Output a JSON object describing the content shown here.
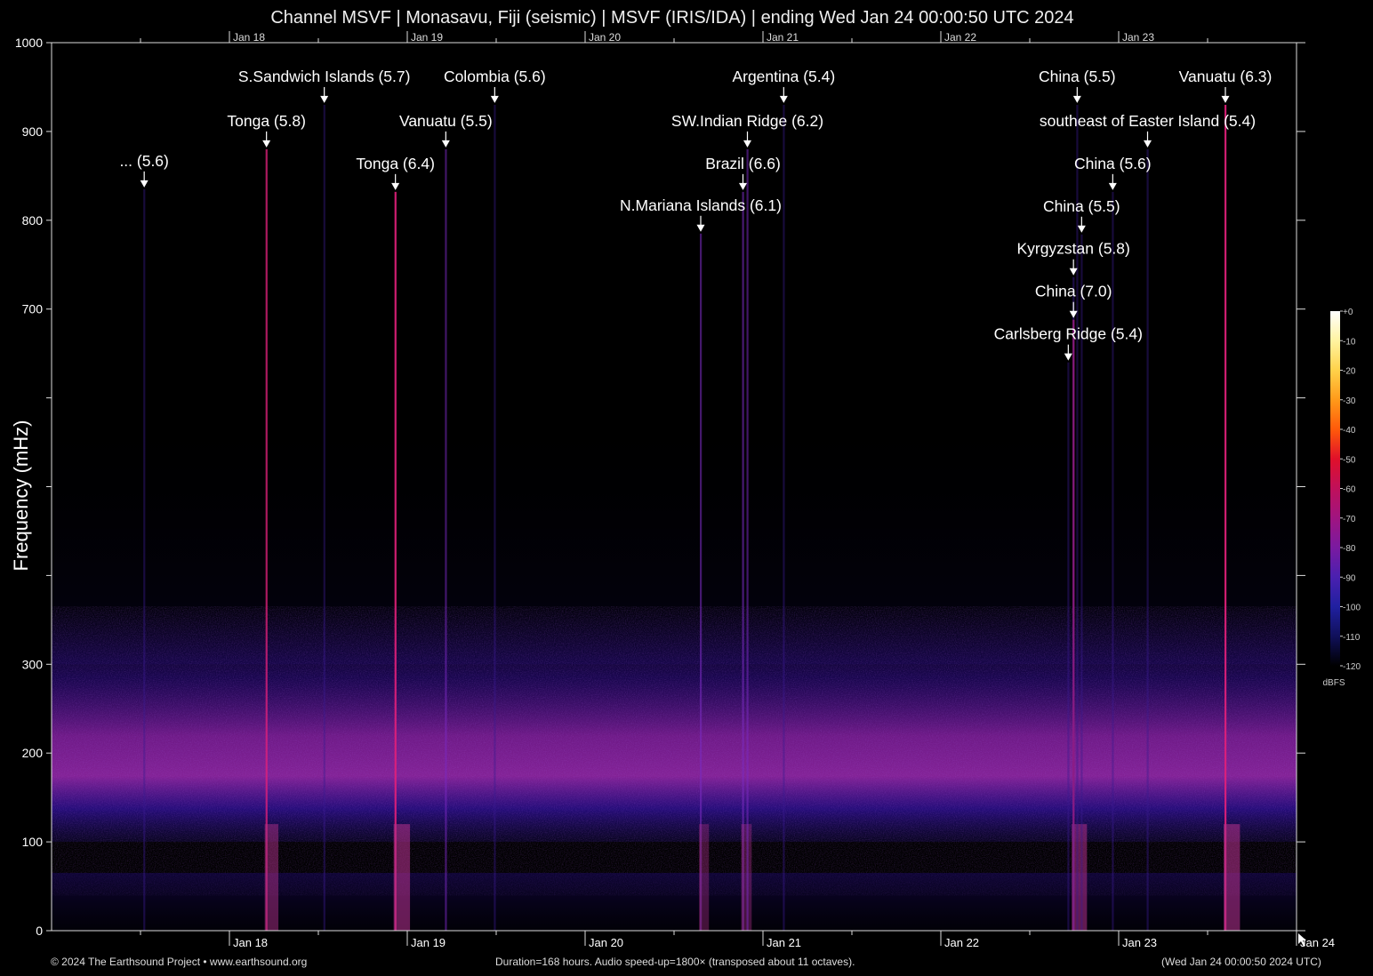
{
  "title": "Channel MSVF | Monasavu, Fiji (seismic) | MSVF (IRIS/IDA) | ending Wed Jan 24 00:00:50 UTC 2024",
  "footer": {
    "left": "© 2024 The Earthsound Project • www.earthsound.org",
    "middle": "Duration=168 hours. Audio speed-up=1800× (transposed about 11 octaves).",
    "right": "(Wed Jan 24 00:00:50 2024 UTC)"
  },
  "chart_data": {
    "type": "heatmap",
    "title": "Channel MSVF | Monasavu, Fiji (seismic) | MSVF (IRIS/IDA) | ending Wed Jan 24 00:00:50 UTC 2024",
    "ylabel": "Frequency (mHz)",
    "xlabel": "",
    "xlim_hours": [
      0,
      168
    ],
    "ylim": [
      0,
      1000
    ],
    "x_tick_labels": [
      {
        "label": "Jan 18",
        "hour": 24
      },
      {
        "label": "Jan 19",
        "hour": 48
      },
      {
        "label": "Jan 20",
        "hour": 72
      },
      {
        "label": "Jan 21",
        "hour": 96
      },
      {
        "label": "Jan 22",
        "hour": 120
      },
      {
        "label": "Jan 23",
        "hour": 144
      },
      {
        "label": "Jan 24",
        "hour": 168
      }
    ],
    "y_ticks": [
      0,
      100,
      200,
      300,
      400,
      500,
      600,
      700,
      800,
      900,
      1000
    ],
    "y_tick_labels": [
      {
        "label": "0",
        "value": 0
      },
      {
        "label": "100",
        "value": 100
      },
      {
        "label": "200",
        "value": 200
      },
      {
        "label": "300",
        "value": 300
      },
      {
        "label": "700",
        "value": 700
      },
      {
        "label": "800",
        "value": 800
      },
      {
        "label": "900",
        "value": 900
      },
      {
        "label": "1000",
        "value": 1000
      }
    ],
    "colorbar": {
      "unit": "dBFS",
      "ticks": [
        "+0",
        "-10",
        "-20",
        "-30",
        "-40",
        "-50",
        "-60",
        "-70",
        "-80",
        "-90",
        "-100",
        "-110",
        "-120"
      ],
      "colors": [
        "#ffffff",
        "#fff3a0",
        "#ffd24a",
        "#ff9a1a",
        "#ff5a0a",
        "#e0102a",
        "#c0105a",
        "#a01480",
        "#7a1aa0",
        "#4a20b0",
        "#2020a0",
        "#10105a",
        "#000000"
      ]
    },
    "noise_band": {
      "center_mhz": 175,
      "note": "broad microseism band between about 80 and 300 mHz"
    },
    "events": [
      {
        "label": "... (5.6)",
        "hour": 12.5,
        "marker_mhz": 840,
        "strength": 0.1
      },
      {
        "label": "Tonga (5.8)",
        "hour": 29.0,
        "marker_mhz": 885,
        "strength": 0.7
      },
      {
        "label": "S.Sandwich Islands (5.7)",
        "hour": 36.8,
        "marker_mhz": 935,
        "strength": 0.1
      },
      {
        "label": "Tonga (6.4)",
        "hour": 46.4,
        "marker_mhz": 837,
        "strength": 0.95
      },
      {
        "label": "Vanuatu (5.5)",
        "hour": 53.2,
        "marker_mhz": 885,
        "strength": 0.3
      },
      {
        "label": "Colombia (5.6)",
        "hour": 59.8,
        "marker_mhz": 935,
        "strength": 0.1
      },
      {
        "label": "N.Mariana Islands (6.1)",
        "hour": 87.6,
        "marker_mhz": 790,
        "strength": 0.35
      },
      {
        "label": "Brazil (6.6)",
        "hour": 93.3,
        "marker_mhz": 837,
        "strength": 0.4
      },
      {
        "label": "SW.Indian Ridge (6.2)",
        "hour": 93.9,
        "marker_mhz": 885,
        "strength": 0.3
      },
      {
        "label": "Argentina (5.4)",
        "hour": 98.8,
        "marker_mhz": 935,
        "strength": 0.1
      },
      {
        "label": "Carlsberg Ridge (5.4)",
        "hour": 137.2,
        "marker_mhz": 645,
        "strength": 0.1
      },
      {
        "label": "China (7.0)",
        "hour": 137.9,
        "marker_mhz": 693,
        "strength": 0.85
      },
      {
        "label": "Kyrgyzstan (5.8)",
        "hour": 137.9,
        "marker_mhz": 741,
        "strength": 0.2
      },
      {
        "label": "China (5.5)",
        "hour": 138.4,
        "marker_mhz": 935,
        "strength": 0.1
      },
      {
        "label": "China (5.5)",
        "hour": 139.0,
        "marker_mhz": 789,
        "strength": 0.1
      },
      {
        "label": "China (5.6)",
        "hour": 143.2,
        "marker_mhz": 837,
        "strength": 0.1
      },
      {
        "label": "southeast of Easter Island (5.4)",
        "hour": 147.9,
        "marker_mhz": 885,
        "strength": 0.1
      },
      {
        "label": "Vanuatu (6.3)",
        "hour": 158.4,
        "marker_mhz": 935,
        "strength": 0.95
      }
    ]
  }
}
